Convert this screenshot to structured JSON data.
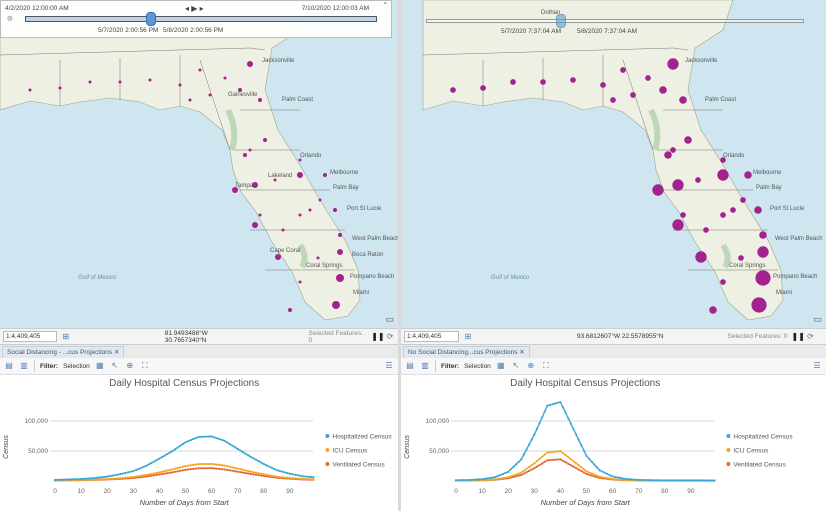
{
  "left": {
    "time_slider": {
      "start": "4/2/2020 12:00:00 AM",
      "end": "7/10/2020 12:00:03 AM",
      "current_start": "5/7/2020 2:00:56 PM",
      "current_end": "5/8/2020 2:00:56 PM"
    },
    "status": {
      "scale": "1:4,409,405",
      "coordinates": "81.9493488°W 30.7657340°N",
      "selected_features": "Selected Features: 0"
    },
    "tab_label": "Social Distancing - ...cus Projections",
    "toolbar": {
      "filter_label": "Filter:",
      "selection_label": "Selection"
    },
    "map_labels": [
      "Jacksonville",
      "Gainesville",
      "Palm Coast",
      "Orlando",
      "Tampa",
      "Lakeland",
      "Melbourne",
      "Palm Bay",
      "Port St Lucie",
      "West Palm Beach",
      "Coral Springs",
      "Boca Raton",
      "Pompano Beach",
      "Miami",
      "Cape Coral",
      "Gulf of Mexico"
    ]
  },
  "right": {
    "time_slider": {
      "current_start": "5/7/2020 7:37:04 AM",
      "current_end": "5/8/2020 7:37:04 AM"
    },
    "status": {
      "scale": "1:4,409,405",
      "coordinates": "93.6812607°W 22.5578955°N",
      "selected_features": "Selected Features: 0"
    },
    "tab_label": "No Social Distancing...cus Projections",
    "toolbar": {
      "filter_label": "Filter:",
      "selection_label": "Selection"
    },
    "map_labels": [
      "Dothan",
      "Jacksonville",
      "Palm Coast",
      "Orlando",
      "Melbourne",
      "Palm Bay",
      "Port St Lucie",
      "West Palm Beach",
      "Coral Springs",
      "Pompano Beach",
      "Miami",
      "Gulf of Mexico"
    ]
  },
  "colors": {
    "hospitalized": "#3aa8d6",
    "icu": "#f5a623",
    "ventilated": "#e0693d",
    "county_dot": "#a3238e"
  },
  "chart_data": [
    {
      "type": "line",
      "title": "Daily Hospital Census Projections",
      "xlabel": "Number of Days from Start",
      "ylabel": "Census",
      "xlim": [
        0,
        99
      ],
      "ylim": [
        0,
        100000
      ],
      "xticks": [
        "0",
        "10",
        "20",
        "30",
        "40",
        "50",
        "60",
        "70",
        "80",
        "90"
      ],
      "yticks": [
        "50,000",
        "100,000"
      ],
      "legend": "right",
      "grid": true,
      "x": [
        0,
        5,
        10,
        15,
        20,
        25,
        30,
        35,
        40,
        45,
        50,
        55,
        60,
        65,
        70,
        75,
        80,
        85,
        90,
        95
      ],
      "series": [
        {
          "name": "Hospitalized Census",
          "values": [
            1900,
            2500,
            3400,
            4800,
            7300,
            11400,
            16500,
            25400,
            37300,
            49800,
            64600,
            73500,
            74300,
            66900,
            53500,
            40200,
            28400,
            18000,
            12100,
            7800
          ]
        },
        {
          "name": "ICU Census",
          "values": [
            1100,
            1400,
            1700,
            2300,
            3200,
            4700,
            6700,
            10000,
            14500,
            19300,
            24900,
            28200,
            28500,
            25700,
            20700,
            15600,
            11200,
            7200,
            5000,
            3400
          ]
        },
        {
          "name": "Ventilated Census",
          "values": [
            850,
            1000,
            1300,
            1700,
            2400,
            3500,
            5000,
            7500,
            10900,
            14500,
            18700,
            21200,
            21400,
            19300,
            15500,
            11700,
            8400,
            5400,
            3800,
            2500
          ]
        }
      ]
    },
    {
      "type": "line",
      "title": "Daily Hospital Census Projections",
      "xlabel": "Number of Days from Start",
      "ylabel": "Census",
      "xlim": [
        0,
        99
      ],
      "ylim": [
        0,
        140000
      ],
      "xticks": [
        "0",
        "10",
        "20",
        "30",
        "40",
        "50",
        "60",
        "70",
        "80",
        "90"
      ],
      "yticks": [
        "50,000",
        "100,000"
      ],
      "legend": "right",
      "grid": true,
      "x": [
        0,
        5,
        10,
        15,
        20,
        25,
        30,
        35,
        40,
        45,
        50,
        55,
        60,
        65,
        70,
        75,
        80,
        85,
        90,
        95
      ],
      "series": [
        {
          "name": "Hospitalized Census",
          "values": [
            1300,
            1700,
            3000,
            6400,
            15300,
            36000,
            77200,
            125400,
            131600,
            86700,
            41800,
            17900,
            7500,
            3400,
            1900,
            1300,
            1100,
            1000,
            1000,
            1000
          ]
        },
        {
          "name": "ICU Census",
          "values": [
            900,
            1100,
            1500,
            2800,
            6200,
            13900,
            29400,
            47500,
            49800,
            33000,
            16100,
            7100,
            3200,
            1700,
            1100,
            900,
            850,
            800,
            800,
            800
          ]
        },
        {
          "name": "Ventilated Census",
          "values": [
            670,
            800,
            1100,
            2100,
            4500,
            10100,
            21300,
            34500,
            36100,
            23900,
            11700,
            5200,
            2400,
            1300,
            840,
            690,
            630,
            600,
            600,
            600
          ]
        }
      ]
    }
  ]
}
